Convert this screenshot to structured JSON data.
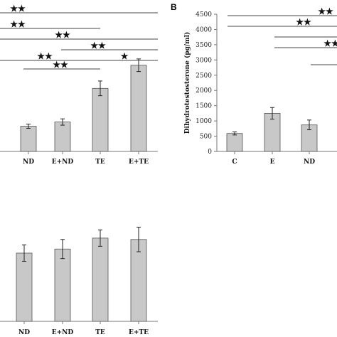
{
  "chart_data": [
    {
      "panel": "",
      "type": "bar",
      "categories": [
        "ND",
        "E+ND",
        "TE",
        "E+TE"
      ],
      "values": [
        1.2,
        1.4,
        3.0,
        4.1
      ],
      "errors": [
        0.1,
        0.15,
        0.35,
        0.3
      ],
      "ylim": [
        0,
        7.0
      ],
      "bar_color": "#c8c8c8",
      "significance": [
        {
          "from": "C",
          "to": "E+TE",
          "label": "★★"
        },
        {
          "from": "C",
          "to": "TE",
          "label": "★★"
        },
        {
          "from": "C",
          "to": "E+TE",
          "label": "★★"
        },
        {
          "from": "E+ND",
          "to": "E+TE",
          "label": "★★"
        },
        {
          "from": "C",
          "to": "TE",
          "label": "★★"
        },
        {
          "from": "TE",
          "to": "E+TE",
          "label": "★"
        },
        {
          "from": "ND",
          "to": "TE",
          "label": "★★"
        }
      ]
    },
    {
      "panel": "B",
      "type": "bar",
      "categories": [
        "C",
        "E",
        "ND"
      ],
      "values": [
        590,
        1250,
        870
      ],
      "errors": [
        50,
        190,
        160
      ],
      "ylabel": "Dihydrotestosterone (pg/ml)",
      "ylim": [
        0,
        4500
      ],
      "yticks": [
        0,
        500,
        1000,
        1500,
        2000,
        2500,
        3000,
        3500,
        4000,
        4500
      ],
      "bar_color": "#c8c8c8",
      "significance": [
        {
          "from": "C",
          "to": "E+TE",
          "label": "★★"
        },
        {
          "from": "C",
          "to": "E+TE",
          "label": "★★"
        },
        {
          "from": "E",
          "to": "E+TE",
          "label": ""
        },
        {
          "from": "E",
          "to": "E+TE",
          "label": "★★"
        },
        {
          "from": "ND",
          "to": "E+TE",
          "label": ""
        }
      ]
    },
    {
      "panel": "",
      "type": "bar",
      "categories": [
        "ND",
        "E+ND",
        "TE",
        "E+TE"
      ],
      "values": [
        5.0,
        5.3,
        6.1,
        6.0
      ],
      "errors": [
        0.6,
        0.7,
        0.6,
        0.9
      ],
      "ylim": [
        0,
        10
      ],
      "bar_color": "#c8c8c8"
    }
  ]
}
